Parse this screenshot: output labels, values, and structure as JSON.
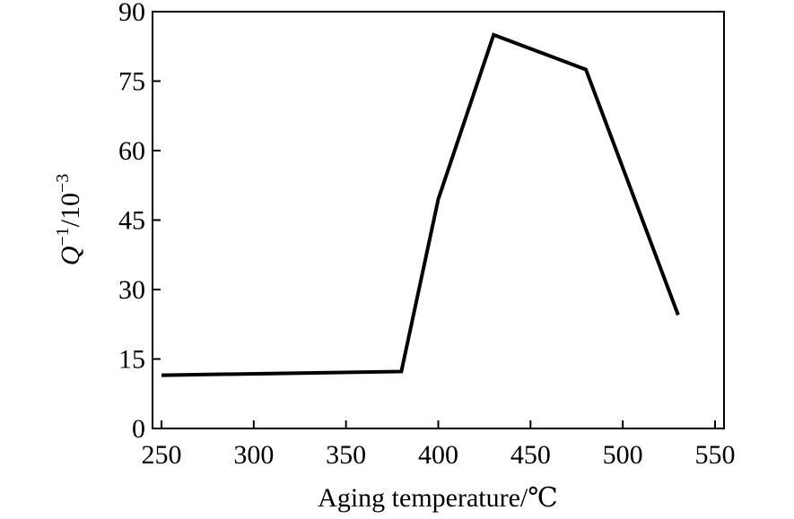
{
  "chart_data": {
    "type": "line",
    "title": "",
    "xlabel": "Aging temperature/℃",
    "ylabel": {
      "symbol": "Q",
      "sup1": "−1",
      "unit": "/10",
      "sup2": "−3"
    },
    "xlim": [
      250,
      550
    ],
    "ylim": [
      0,
      90
    ],
    "x_ticks": [
      "250",
      "300",
      "350",
      "400",
      "450",
      "500",
      "550"
    ],
    "y_ticks": [
      "0",
      "15",
      "30",
      "45",
      "60",
      "75",
      "90"
    ],
    "grid": false,
    "series": [
      {
        "x": [
          250,
          380,
          400,
          430,
          480,
          530
        ],
        "y": [
          11.5,
          12.3,
          49.5,
          85.0,
          77.5,
          24.5
        ]
      }
    ]
  }
}
